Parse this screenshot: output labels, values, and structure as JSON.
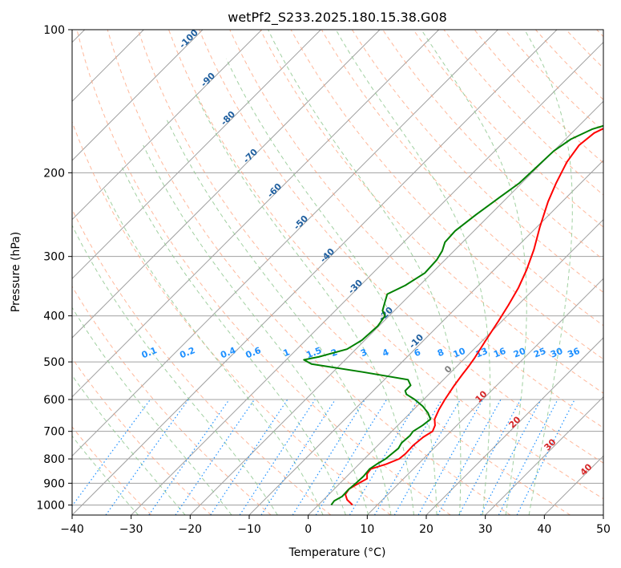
{
  "chart_data": {
    "type": "line",
    "subtype": "skew-t log-p",
    "title": "wetPf2_S233.2025.180.15.38.G08",
    "xlabel": "Temperature (°C)",
    "ylabel": "Pressure (hPa)",
    "xlim": [
      -40,
      50
    ],
    "ylim": [
      1050,
      100
    ],
    "y_scale": "log",
    "grid": true,
    "x_ticks": [
      "-40",
      "-30",
      "-20",
      "-10",
      "0",
      "10",
      "20",
      "30",
      "40",
      "50"
    ],
    "y_ticks": [
      "100",
      "200",
      "300",
      "400",
      "500",
      "600",
      "700",
      "800",
      "900",
      "1000"
    ],
    "series": [
      {
        "role": "temperature",
        "color": "#ff0000",
        "points": [
          [
            5.8,
            1000
          ],
          [
            4.0,
            975
          ],
          [
            2.8,
            950
          ],
          [
            2.5,
            925
          ],
          [
            3.2,
            900
          ],
          [
            3.8,
            880
          ],
          [
            3.0,
            860
          ],
          [
            2.8,
            840
          ],
          [
            4.6,
            820
          ],
          [
            5.9,
            800
          ],
          [
            6.1,
            780
          ],
          [
            6.0,
            750
          ],
          [
            6.3,
            720
          ],
          [
            6.9,
            700
          ],
          [
            6.3,
            680
          ],
          [
            5.2,
            660
          ],
          [
            4.3,
            630
          ],
          [
            3.6,
            600
          ],
          [
            2.8,
            560
          ],
          [
            2.3,
            530
          ],
          [
            2.0,
            510
          ],
          [
            1.6,
            490
          ],
          [
            0.5,
            450
          ],
          [
            -0.6,
            410
          ],
          [
            -1.6,
            380
          ],
          [
            -2.8,
            350
          ],
          [
            -4.5,
            320
          ],
          [
            -6.7,
            290
          ],
          [
            -9.5,
            260
          ],
          [
            -12.4,
            230
          ],
          [
            -14.2,
            210
          ],
          [
            -15.9,
            190
          ],
          [
            -16.7,
            175
          ],
          [
            -16.2,
            165
          ],
          [
            -14.6,
            158
          ],
          [
            -12.7,
            152
          ],
          [
            -10.5,
            145
          ],
          [
            -8.4,
            138
          ],
          [
            -6.9,
            130
          ],
          [
            -5.5,
            122
          ],
          [
            -4.2,
            115
          ],
          [
            -3.4,
            110
          ],
          [
            -2.6,
            105
          ],
          [
            -1.9,
            100
          ]
        ]
      },
      {
        "role": "dewpoint",
        "color": "#008000",
        "points": [
          [
            2.2,
            1000
          ],
          [
            2.0,
            980
          ],
          [
            2.6,
            960
          ],
          [
            2.5,
            930
          ],
          [
            2.7,
            900
          ],
          [
            2.8,
            870
          ],
          [
            2.6,
            840
          ],
          [
            3.0,
            820
          ],
          [
            3.6,
            800
          ],
          [
            3.8,
            780
          ],
          [
            4.0,
            760
          ],
          [
            3.6,
            740
          ],
          [
            3.8,
            715
          ],
          [
            3.6,
            700
          ],
          [
            4.2,
            680
          ],
          [
            4.5,
            660
          ],
          [
            3.0,
            640
          ],
          [
            1.0,
            620
          ],
          [
            -1.5,
            600
          ],
          [
            -3.8,
            585
          ],
          [
            -4.6,
            575
          ],
          [
            -4.6,
            560
          ],
          [
            -6.0,
            545
          ],
          [
            -15.0,
            525
          ],
          [
            -25.0,
            505
          ],
          [
            -27.0,
            495
          ],
          [
            -25.0,
            488
          ],
          [
            -21.5,
            470
          ],
          [
            -20.5,
            450
          ],
          [
            -20.2,
            420
          ],
          [
            -20.7,
            400
          ],
          [
            -22.0,
            390
          ],
          [
            -23.0,
            375
          ],
          [
            -24.0,
            360
          ],
          [
            -22.4,
            345
          ],
          [
            -21.2,
            325
          ],
          [
            -21.4,
            305
          ],
          [
            -22.0,
            292
          ],
          [
            -23.0,
            280
          ],
          [
            -23.2,
            265
          ],
          [
            -22.4,
            245
          ],
          [
            -21.3,
            225
          ],
          [
            -20.4,
            210
          ],
          [
            -20.2,
            195
          ],
          [
            -20.0,
            180
          ],
          [
            -19.1,
            170
          ],
          [
            -17.2,
            162
          ],
          [
            -14.7,
            157
          ],
          [
            -12.0,
            152
          ],
          [
            -10.0,
            145
          ],
          [
            -8.6,
            138
          ],
          [
            -7.8,
            130
          ],
          [
            -6.9,
            122
          ],
          [
            -5.9,
            115
          ],
          [
            -5.0,
            110
          ],
          [
            -4.1,
            105
          ],
          [
            -3.4,
            100
          ]
        ]
      }
    ],
    "dry_adiabat_labels": [
      "-100",
      "-90",
      "-80",
      "-70",
      "-60",
      "-50",
      "-40",
      "-30",
      "-20",
      "-10",
      "0",
      "10",
      "20",
      "30",
      "40"
    ],
    "mixing_ratio_labels": [
      "0.1",
      "0.2",
      "0.4",
      "0.6",
      "1",
      "1.5",
      "2",
      "3",
      "4",
      "6",
      "8",
      "10",
      "13",
      "16",
      "20",
      "25",
      "30",
      "36"
    ],
    "colors": {
      "temperature": "#ff0000",
      "dewpoint": "#008000",
      "dry_adiabat": "#ffa07a",
      "moist_adiabat": "#90c890",
      "mixing_ratio": "#1e90ff",
      "isotherm_grid": "#a0a0a0",
      "cold_label": "#1f5f9f",
      "warm_label": "#d62728",
      "zero_label": "#808080",
      "mixing_label": "#1e90ff"
    }
  }
}
